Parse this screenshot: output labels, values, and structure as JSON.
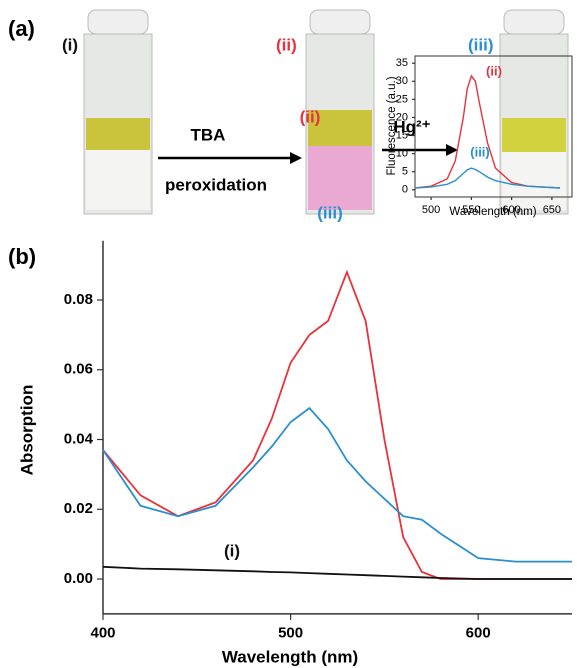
{
  "panel_a": {
    "label": "(a)",
    "samples": [
      "(i)",
      "(ii)",
      "(iii)"
    ],
    "step1": [
      "TBA",
      "peroxidation"
    ],
    "step2": "Hg²⁺"
  },
  "chart_data": [
    {
      "type": "line",
      "panel_label": "(b)",
      "x_label": "Wavelength (nm)",
      "y_label": "Absorption",
      "x": [
        400,
        420,
        440,
        460,
        480,
        490,
        500,
        510,
        520,
        530,
        540,
        550,
        560,
        570,
        580,
        600,
        620,
        650
      ],
      "series": [
        {
          "name": "(ii)",
          "color": "#e8323c",
          "values": [
            0.037,
            0.024,
            0.018,
            0.022,
            0.034,
            0.046,
            0.062,
            0.07,
            0.074,
            0.088,
            0.074,
            0.04,
            0.012,
            0.002,
            0,
            0,
            0,
            0
          ]
        },
        {
          "name": "(iii)",
          "color": "#2a8fd0",
          "values": [
            0.037,
            0.021,
            0.018,
            0.021,
            0.032,
            0.038,
            0.045,
            0.049,
            0.043,
            0.034,
            0.028,
            0.023,
            0.018,
            0.017,
            0.013,
            0.006,
            0.005,
            0.005
          ]
        },
        {
          "name": "(i)",
          "color": "#111111",
          "values": [
            0.0035,
            0.003,
            0.0028,
            0.0025,
            0.0022,
            0.002,
            0.0019,
            0.0017,
            0.0015,
            0.0013,
            0.0011,
            0.0009,
            0.0007,
            0.0005,
            0.0003,
            0,
            0,
            0
          ]
        }
      ],
      "xlim": [
        400,
        650
      ],
      "ylim": [
        -0.01,
        0.097
      ],
      "xticks": [
        400,
        500,
        600
      ],
      "yticks": [
        {
          "value": 0,
          "label": "0.00"
        },
        {
          "value": 0.02,
          "label": "0.02"
        },
        {
          "value": 0.04,
          "label": "0.04"
        },
        {
          "value": 0.06,
          "label": "0.06"
        },
        {
          "value": 0.08,
          "label": "0.08"
        }
      ]
    },
    {
      "type": "line",
      "x_label": "Wavelength (nm)",
      "y_label": "Fluorescence (a.u.)",
      "x": [
        480,
        500,
        520,
        530,
        540,
        545,
        550,
        555,
        560,
        570,
        580,
        600,
        620,
        660
      ],
      "series": [
        {
          "name": "(ii)",
          "color": "#e8323c",
          "values": [
            0.5,
            1,
            3,
            8,
            20,
            28,
            31.5,
            30,
            24,
            13,
            6,
            2,
            1,
            0.5
          ]
        },
        {
          "name": "(iii)",
          "color": "#2a8fd0",
          "values": [
            0.5,
            0.8,
            1.5,
            2.5,
            4.5,
            5.5,
            6,
            5.6,
            5,
            3.5,
            2.5,
            1.5,
            1,
            0.5
          ]
        }
      ],
      "xlim": [
        480,
        675
      ],
      "ylim": [
        -2,
        37
      ],
      "xticks": [
        500,
        550,
        600,
        650
      ],
      "yticks": [
        0,
        5,
        10,
        15,
        20,
        25,
        30,
        35
      ]
    }
  ]
}
